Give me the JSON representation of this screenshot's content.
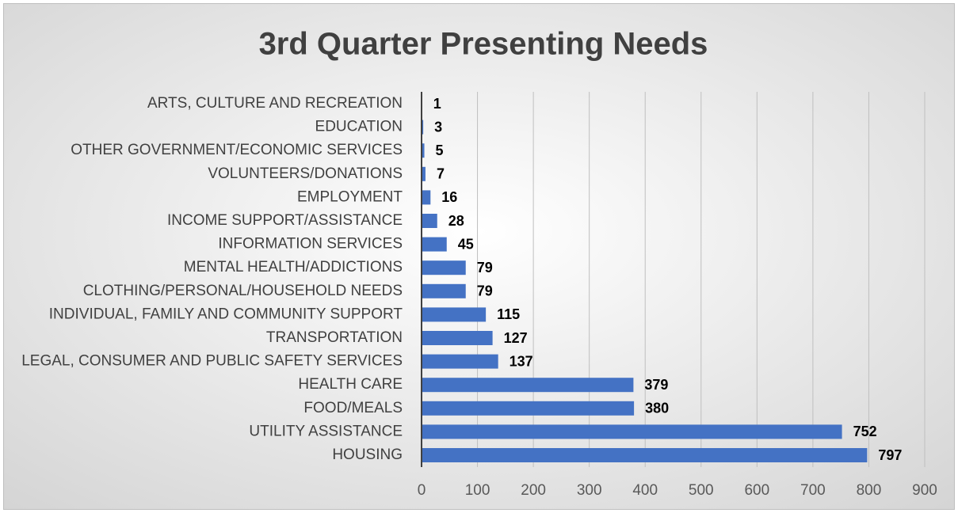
{
  "chart_data": {
    "type": "bar",
    "orientation": "horizontal",
    "title": "3rd Quarter Presenting Needs",
    "categories": [
      "ARTS, CULTURE AND RECREATION",
      "EDUCATION",
      "OTHER GOVERNMENT/ECONOMIC SERVICES",
      "VOLUNTEERS/DONATIONS",
      "EMPLOYMENT",
      "INCOME SUPPORT/ASSISTANCE",
      "INFORMATION SERVICES",
      "MENTAL HEALTH/ADDICTIONS",
      "CLOTHING/PERSONAL/HOUSEHOLD NEEDS",
      "INDIVIDUAL, FAMILY AND COMMUNITY SUPPORT",
      "TRANSPORTATION",
      "LEGAL, CONSUMER AND PUBLIC SAFETY SERVICES",
      "HEALTH CARE",
      "FOOD/MEALS",
      "UTILITY ASSISTANCE",
      "HOUSING"
    ],
    "values": [
      1,
      3,
      5,
      7,
      16,
      28,
      45,
      79,
      79,
      115,
      127,
      137,
      379,
      380,
      752,
      797
    ],
    "color": "#4472c4",
    "xlim": [
      0,
      900
    ],
    "xticks": [
      0,
      100,
      200,
      300,
      400,
      500,
      600,
      700,
      800,
      900
    ],
    "grid": true
  }
}
